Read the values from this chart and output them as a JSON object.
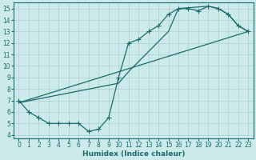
{
  "line1_x": [
    0,
    1,
    2,
    3,
    4,
    5,
    6,
    7,
    8,
    9,
    10,
    11,
    12,
    13,
    14,
    15,
    16,
    17,
    18,
    19,
    20,
    21,
    22,
    23
  ],
  "line1_y": [
    7.0,
    6.0,
    5.5,
    5.0,
    5.0,
    5.0,
    5.0,
    4.3,
    4.5,
    5.5,
    9.0,
    12.0,
    12.3,
    13.0,
    13.5,
    14.5,
    15.0,
    15.0,
    14.8,
    15.2,
    15.0,
    14.5,
    13.5,
    13.0
  ],
  "line2_x": [
    0,
    23
  ],
  "line2_y": [
    6.8,
    13.0
  ],
  "line3_x": [
    0,
    10,
    11,
    15,
    16,
    19,
    20,
    21,
    22,
    23
  ],
  "line3_y": [
    6.8,
    8.5,
    9.5,
    13.0,
    15.0,
    15.2,
    15.0,
    14.5,
    13.5,
    13.0
  ],
  "color": "#1a6b6b",
  "bg_color": "#cceaea",
  "grid_color": "#aacfcf",
  "xlabel": "Humidex (Indice chaleur)",
  "xlim": [
    -0.5,
    23.5
  ],
  "ylim": [
    3.7,
    15.5
  ],
  "yticks": [
    4,
    5,
    6,
    7,
    8,
    9,
    10,
    11,
    12,
    13,
    14,
    15
  ],
  "xticks": [
    0,
    1,
    2,
    3,
    4,
    5,
    6,
    7,
    8,
    9,
    10,
    11,
    12,
    13,
    14,
    15,
    16,
    17,
    18,
    19,
    20,
    21,
    22,
    23
  ],
  "marker": "+",
  "marker_size": 4,
  "linewidth": 0.9,
  "tick_fontsize": 5.5,
  "xlabel_fontsize": 6.5
}
